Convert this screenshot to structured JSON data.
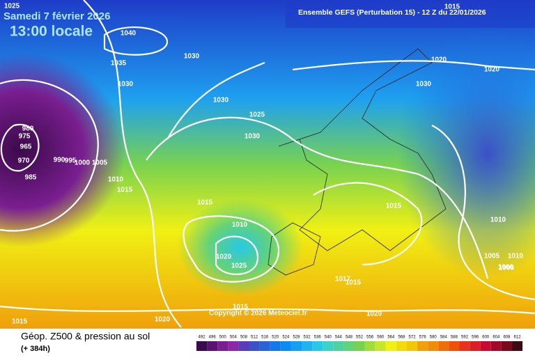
{
  "header": {
    "date": "Samedi 7 février 2026",
    "time": "13:00 locale",
    "run": "Ensemble GEFS  (Perturbation 15)  -  12 Z du 22/01/2026"
  },
  "copyright": "Copyright © 2026 Meteociel.fr",
  "footer": {
    "title": "Géop. Z500 & pression au sol",
    "lead": "(+ 384h)"
  },
  "isobar_labels": [
    1025,
    1040,
    1030,
    1035,
    1030,
    1030,
    1025,
    1030,
    980,
    975,
    965,
    970,
    990,
    995,
    1000,
    1005,
    985,
    1010,
    1015,
    1010,
    1015,
    1020,
    1025,
    1020,
    1020,
    1030,
    1015,
    1010,
    1005,
    1000,
    1017,
    1015,
    1020,
    1015,
    1015,
    1020,
    1015,
    1010,
    1005
  ],
  "legend": [
    {
      "value": 492,
      "color": "#3a0a4a"
    },
    {
      "value": 496,
      "color": "#5a1470"
    },
    {
      "value": 500,
      "color": "#7a1e90"
    },
    {
      "value": 504,
      "color": "#8a28a8"
    },
    {
      "value": 508,
      "color": "#5a3cb8"
    },
    {
      "value": 512,
      "color": "#3c50c8"
    },
    {
      "value": 516,
      "color": "#2864d8"
    },
    {
      "value": 520,
      "color": "#1478e8"
    },
    {
      "value": 524,
      "color": "#0a8cf0"
    },
    {
      "value": 528,
      "color": "#14a0f0"
    },
    {
      "value": 532,
      "color": "#1eb4f0"
    },
    {
      "value": 536,
      "color": "#28c8e6"
    },
    {
      "value": 540,
      "color": "#3cd2c8"
    },
    {
      "value": 544,
      "color": "#50d2a0"
    },
    {
      "value": 548,
      "color": "#64d278"
    },
    {
      "value": 552,
      "color": "#78d250"
    },
    {
      "value": 556,
      "color": "#a0dc3c"
    },
    {
      "value": 560,
      "color": "#c8e628"
    },
    {
      "value": 564,
      "color": "#f0f014"
    },
    {
      "value": 568,
      "color": "#f0dc0a"
    },
    {
      "value": 572,
      "color": "#f0c80a"
    },
    {
      "value": 576,
      "color": "#f0a00a"
    },
    {
      "value": 580,
      "color": "#f08c0a"
    },
    {
      "value": 584,
      "color": "#f06e0a"
    },
    {
      "value": 588,
      "color": "#f0500a"
    },
    {
      "value": 592,
      "color": "#e6321e"
    },
    {
      "value": 596,
      "color": "#dc1e28"
    },
    {
      "value": 600,
      "color": "#c80a32"
    },
    {
      "value": 604,
      "color": "#a00a28"
    },
    {
      "value": 608,
      "color": "#780a1e"
    },
    {
      "value": 612,
      "color": "#3c0a14"
    }
  ]
}
